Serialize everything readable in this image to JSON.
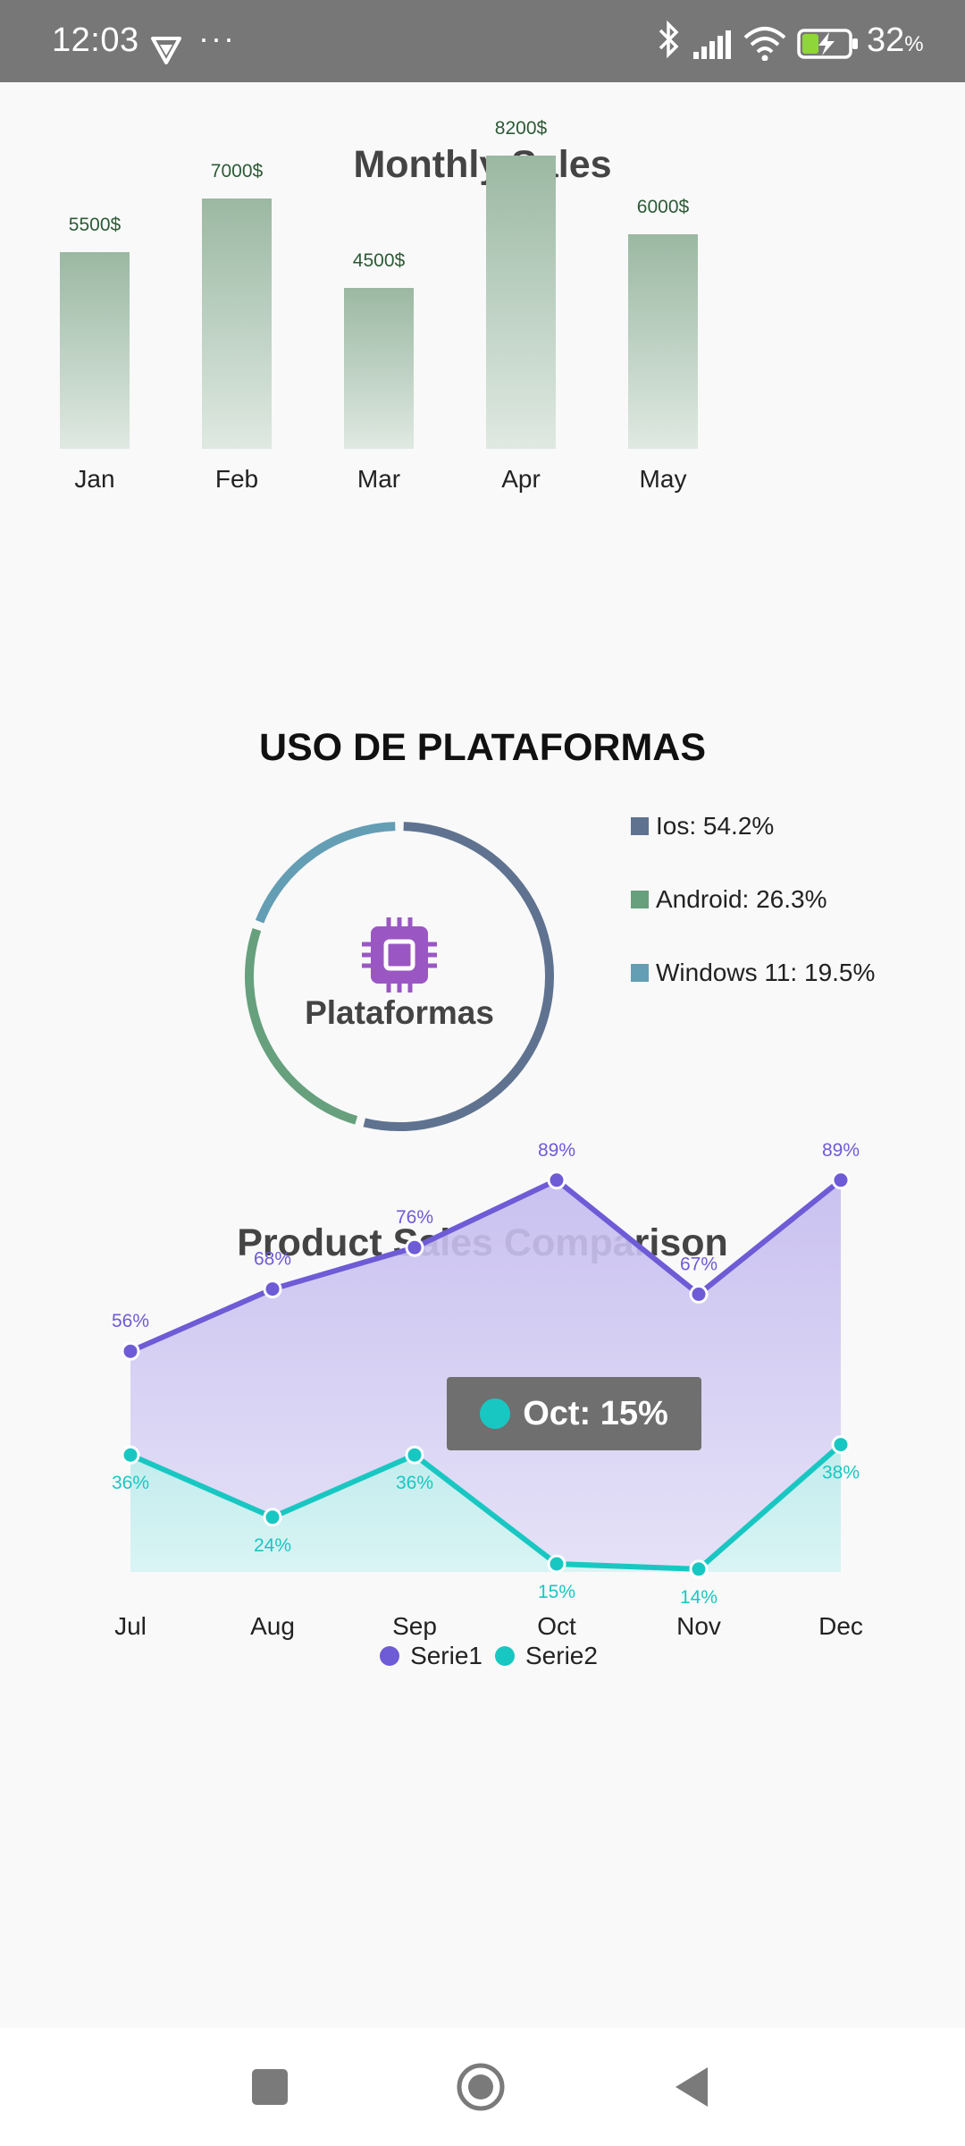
{
  "status_bar": {
    "time": "12:03",
    "dots": "···",
    "battery_percent": "32",
    "battery_unit": "%",
    "icons": [
      "vpn-shield-icon",
      "bluetooth-icon",
      "signal-icon",
      "wifi-icon",
      "battery-charging-icon"
    ]
  },
  "colors": {
    "bar_top": "#9bb8a2",
    "bar_bottom": "#dfe9e2",
    "bar_label": "#2d5a36",
    "ios": "#5f7390",
    "android": "#67a07d",
    "windows": "#649eb5",
    "serie1": "#6e5bd6",
    "serie2": "#19c7c2",
    "chip": "#9a57c3"
  },
  "chart_data": [
    {
      "type": "bar",
      "title": "Monthly Sales",
      "categories": [
        "Jan",
        "Feb",
        "Mar",
        "Apr",
        "May"
      ],
      "values": [
        5500,
        7000,
        4500,
        8200,
        6000
      ],
      "data_labels": [
        "5500$",
        "7000$",
        "4500$",
        "8200$",
        "6000$"
      ],
      "ylim": [
        0,
        9000
      ],
      "grid": false
    },
    {
      "type": "pie",
      "title": "USO DE PLATAFORMAS",
      "center_label": "Plataformas",
      "center_icon": "chip-icon",
      "slices": [
        {
          "label": "Ios",
          "value": 54.2,
          "legend": "Ios: 54.2%"
        },
        {
          "label": "Android",
          "value": 26.3,
          "legend": "Android: 26.3%"
        },
        {
          "label": "Windows 11",
          "value": 19.5,
          "legend": "Windows 11: 19.5%"
        }
      ],
      "legend_position": "right"
    },
    {
      "type": "area",
      "title": "Product Sales Comparison",
      "categories": [
        "Jul",
        "Aug",
        "Sep",
        "Oct",
        "Nov",
        "Dec"
      ],
      "series": [
        {
          "name": "Serie1",
          "values": [
            56,
            68,
            76,
            89,
            67,
            89
          ],
          "labels": [
            "56%",
            "68%",
            "76%",
            "89%",
            "67%",
            "89%"
          ]
        },
        {
          "name": "Serie2",
          "values": [
            36,
            24,
            36,
            15,
            14,
            38
          ],
          "labels": [
            "36%",
            "24%",
            "36%",
            "15%",
            "14%",
            "38%"
          ]
        }
      ],
      "ylim": [
        0,
        100
      ],
      "legend_position": "bottom",
      "grid": false,
      "tooltip": {
        "text": "Oct: 15%"
      }
    }
  ],
  "nav_bar": {
    "buttons": [
      "recents-button",
      "home-button",
      "back-button"
    ]
  }
}
